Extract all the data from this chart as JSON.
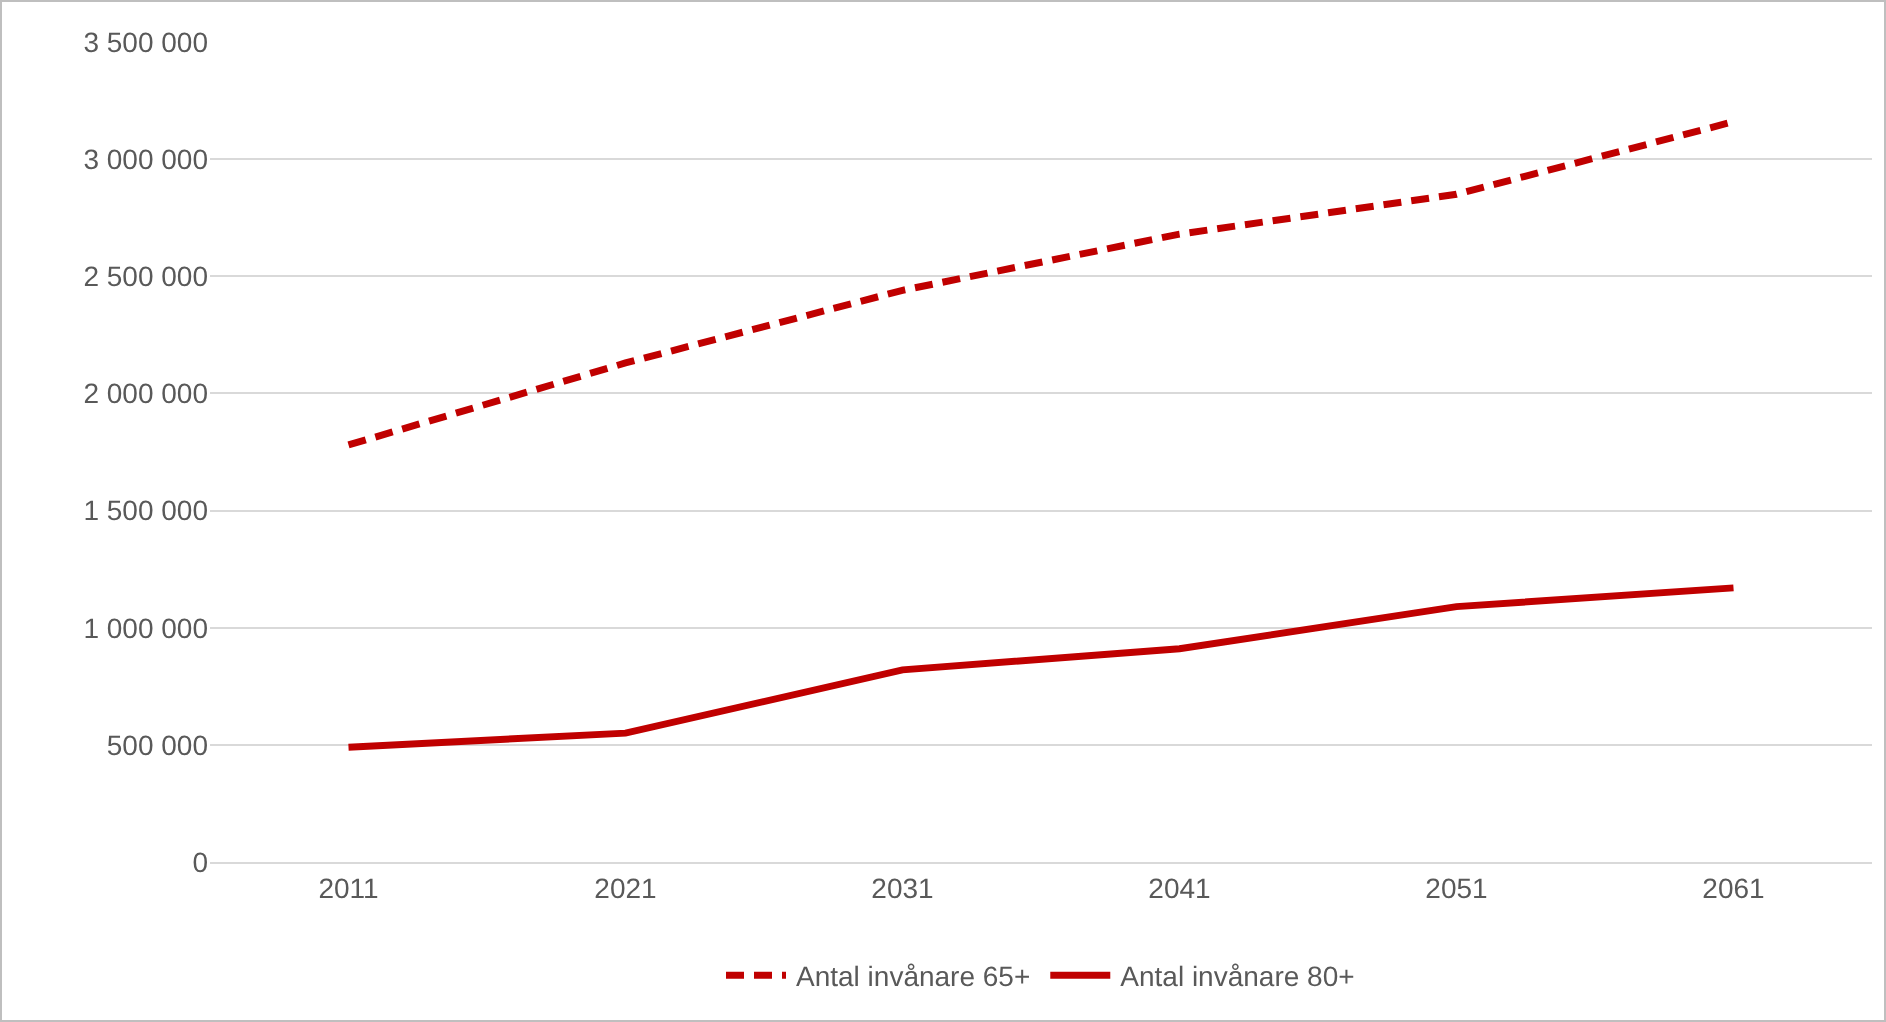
{
  "chart_data": {
    "type": "line",
    "categories": [
      "2011",
      "2021",
      "2031",
      "2041",
      "2051",
      "2061"
    ],
    "series": [
      {
        "name": "Antal invånare 65+",
        "color": "#c00000",
        "line_style": "dashed",
        "values": [
          1780000,
          2130000,
          2440000,
          2680000,
          2850000,
          3160000
        ]
      },
      {
        "name": "Antal invånare 80+",
        "color": "#c00000",
        "line_style": "solid",
        "values": [
          490000,
          550000,
          820000,
          910000,
          1090000,
          1170000
        ]
      }
    ],
    "ylim": [
      0,
      3500000
    ],
    "yticks": [
      0,
      {
        "value": 500000,
        "label": "500 000"
      },
      {
        "value": 1000000,
        "label": "1 000 000"
      },
      {
        "value": 1500000,
        "label": "1 500 000"
      },
      {
        "value": 2000000,
        "label": "2 000 000"
      },
      {
        "value": 2500000,
        "label": "2 500 000"
      },
      {
        "value": 3000000,
        "label": "3 000 000"
      },
      {
        "value": 3500000,
        "label": "3 500 000"
      }
    ],
    "grid": "y",
    "legend": "bottom",
    "marker": "none"
  }
}
